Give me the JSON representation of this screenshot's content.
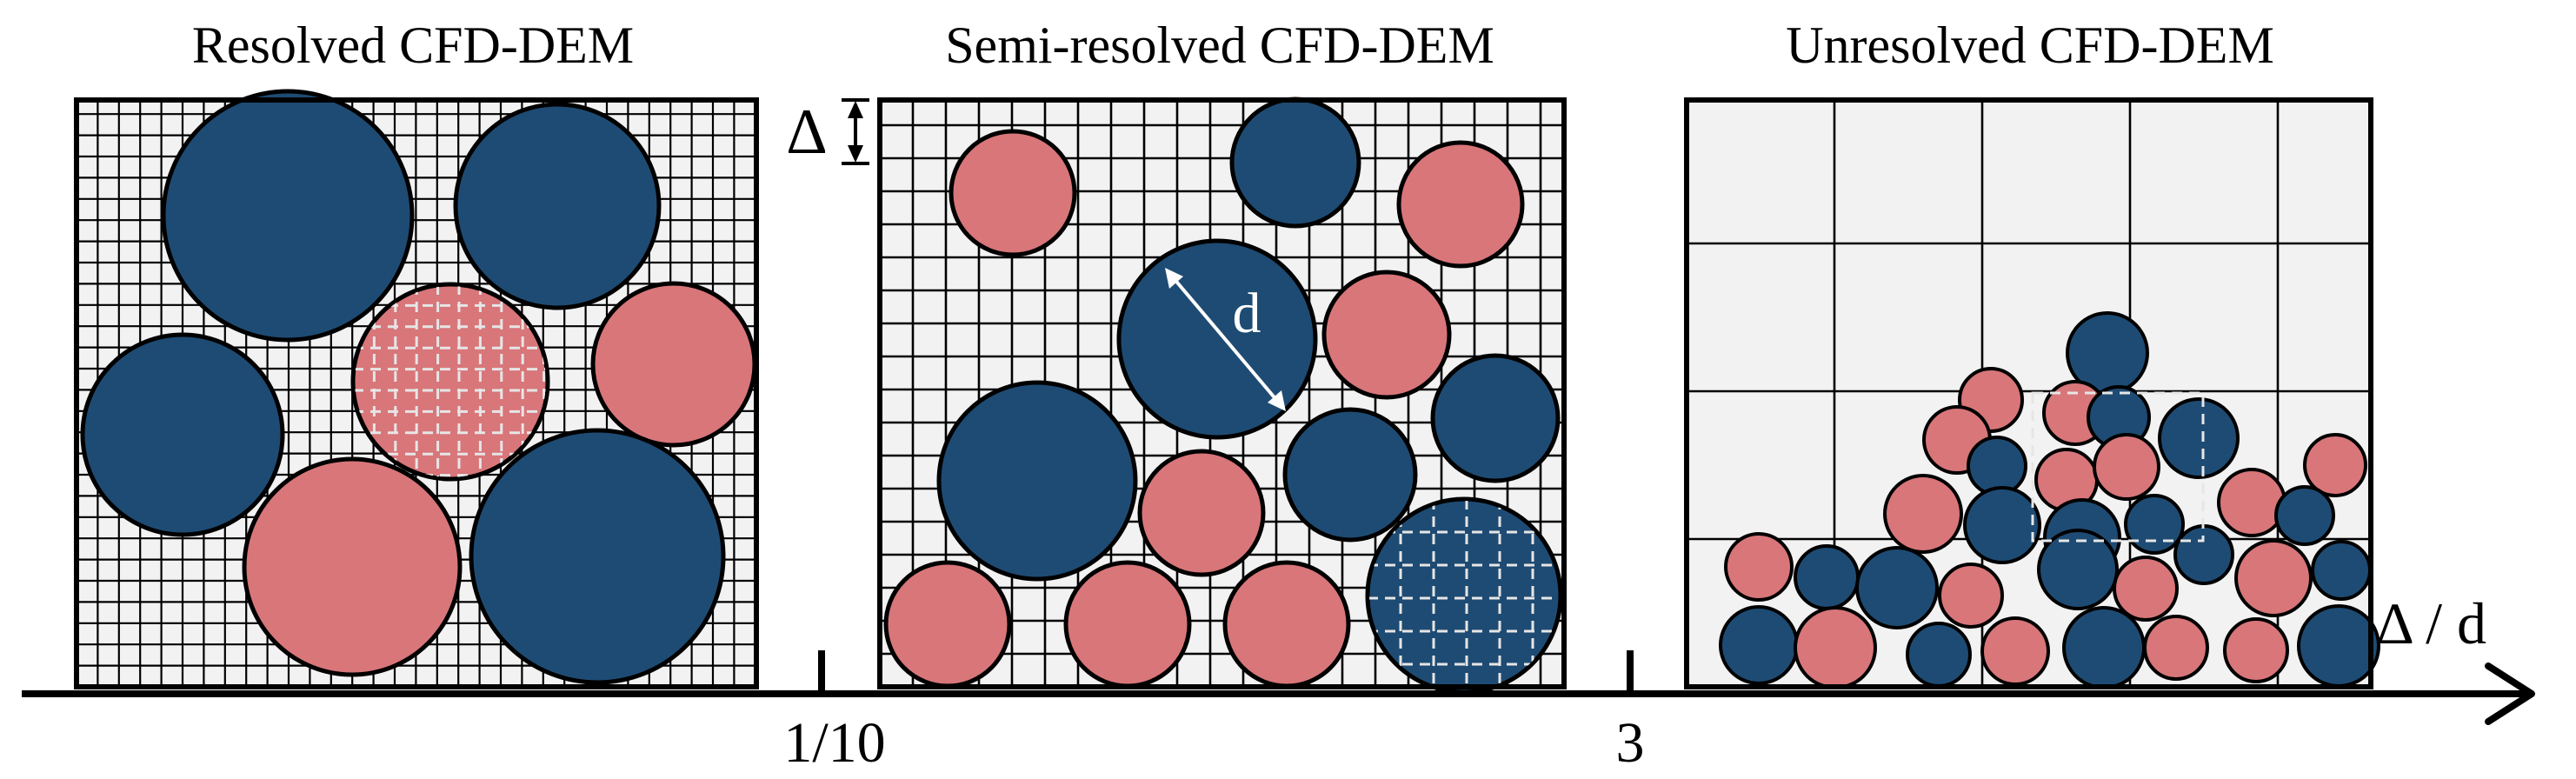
{
  "panels": [
    {
      "title": "Resolved CFD-DEM"
    },
    {
      "title": "Semi-resolved CFD-DEM"
    },
    {
      "title": "Unresolved CFD-DEM"
    }
  ],
  "axis": {
    "label": "Δ / d",
    "ticks": [
      "1/10",
      "3"
    ]
  },
  "annotations": {
    "cell_size": "Δ",
    "diameter": "d"
  },
  "colors": {
    "blue_particle": "#1e4b73",
    "pink_particle": "#d8767a",
    "cell_background": "#f2f2f2",
    "grid_line": "#000000",
    "highlight_dash": "#e6e6e6"
  }
}
